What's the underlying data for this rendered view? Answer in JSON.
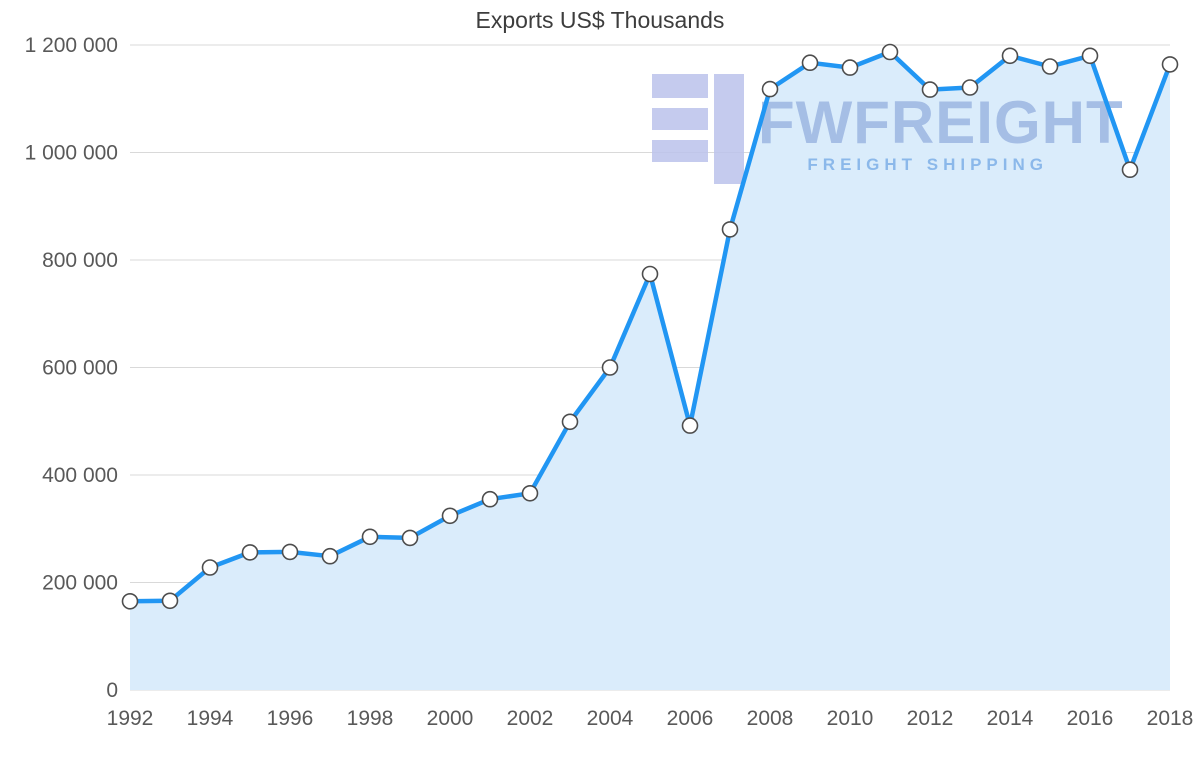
{
  "title": "Exports US$ Thousands",
  "watermark": {
    "brand": "FWFREIGHT",
    "tagline": "FREIGHT SHIPPING"
  },
  "colors": {
    "line": "#2196f3",
    "area": "#daecfb",
    "grid": "#d9d9d9",
    "axis_text": "#595959",
    "title_text": "#3d3d3d",
    "marker_fill": "#ffffff",
    "marker_stroke": "#4d4d4d",
    "watermark_brand": "#9cb6e2",
    "watermark_tagline": "#7eb0e8",
    "watermark_logo": "#bcc3ec"
  },
  "chart_data": {
    "type": "line",
    "title": "Exports US$ Thousands",
    "x": [
      1992,
      1993,
      1994,
      1995,
      1996,
      1997,
      1998,
      1999,
      2000,
      2001,
      2002,
      2003,
      2004,
      2005,
      2006,
      2007,
      2008,
      2009,
      2010,
      2011,
      2012,
      2013,
      2014,
      2015,
      2016,
      2017,
      2018
    ],
    "series": [
      {
        "name": "Exports US$ Thousands",
        "values": [
          165000,
          166000,
          228000,
          256000,
          257000,
          249000,
          285000,
          283000,
          324000,
          355000,
          366000,
          499000,
          600000,
          774000,
          492000,
          857000,
          1118000,
          1167000,
          1158000,
          1187000,
          1117000,
          1121000,
          1180000,
          1160000,
          1180000,
          968000,
          1164000
        ]
      }
    ],
    "ylim": [
      0,
      1200000
    ],
    "yticks": [
      0,
      200000,
      400000,
      600000,
      800000,
      1000000,
      1200000
    ],
    "ytick_labels": [
      "0",
      "200 000",
      "400 000",
      "600 000",
      "800 000",
      "1 000 000",
      "1 200 000"
    ],
    "xtick_labels": [
      "1992",
      "1994",
      "1996",
      "1998",
      "2000",
      "2002",
      "2004",
      "2006",
      "2008",
      "2010",
      "2012",
      "2014",
      "2016",
      "2018"
    ],
    "grid": true,
    "legend_position": "none",
    "marker": "circle",
    "area_fill": true
  }
}
